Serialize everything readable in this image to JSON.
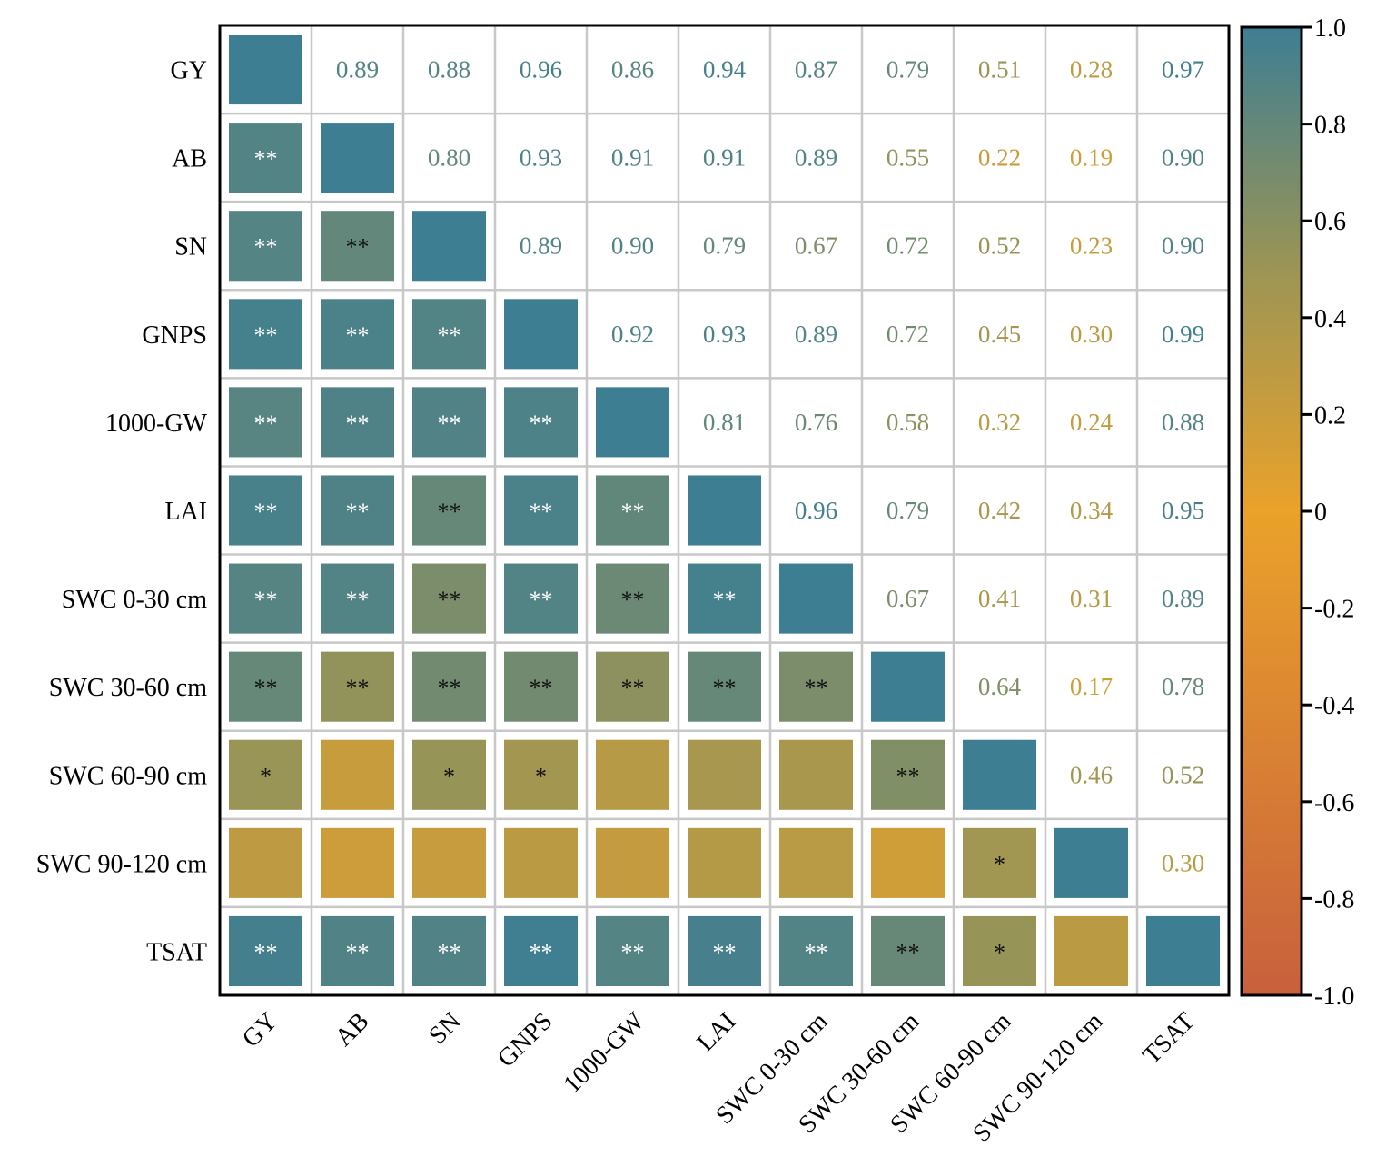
{
  "chart_data": {
    "type": "heatmap",
    "subtype": "correlation-matrix",
    "variables": [
      "GY",
      "AB",
      "SN",
      "GNPS",
      "1000-GW",
      "LAI",
      "SWC 0-30 cm",
      "SWC 30-60 cm",
      "SWC 60-90 cm",
      "SWC 90-120 cm",
      "TSAT"
    ],
    "matrix": [
      [
        1.0,
        0.89,
        0.88,
        0.96,
        0.86,
        0.94,
        0.87,
        0.79,
        0.51,
        0.28,
        0.97
      ],
      [
        0.89,
        1.0,
        0.8,
        0.93,
        0.91,
        0.91,
        0.89,
        0.55,
        0.22,
        0.19,
        0.9
      ],
      [
        0.88,
        0.8,
        1.0,
        0.89,
        0.9,
        0.79,
        0.67,
        0.72,
        0.52,
        0.23,
        0.9
      ],
      [
        0.96,
        0.93,
        0.89,
        1.0,
        0.92,
        0.93,
        0.89,
        0.72,
        0.45,
        0.3,
        0.99
      ],
      [
        0.86,
        0.91,
        0.9,
        0.92,
        1.0,
        0.81,
        0.76,
        0.58,
        0.32,
        0.24,
        0.88
      ],
      [
        0.94,
        0.91,
        0.79,
        0.93,
        0.81,
        1.0,
        0.96,
        0.79,
        0.42,
        0.34,
        0.95
      ],
      [
        0.87,
        0.89,
        0.67,
        0.89,
        0.76,
        0.96,
        1.0,
        0.67,
        0.41,
        0.31,
        0.89
      ],
      [
        0.79,
        0.55,
        0.72,
        0.72,
        0.58,
        0.79,
        0.67,
        1.0,
        0.64,
        0.17,
        0.78
      ],
      [
        0.51,
        0.22,
        0.52,
        0.45,
        0.32,
        0.42,
        0.41,
        0.64,
        1.0,
        0.46,
        0.52
      ],
      [
        0.28,
        0.19,
        0.23,
        0.3,
        0.24,
        0.34,
        0.31,
        0.17,
        0.46,
        1.0,
        0.3
      ],
      [
        0.97,
        0.9,
        0.9,
        0.99,
        0.88,
        0.95,
        0.89,
        0.78,
        0.52,
        0.3,
        1.0
      ]
    ],
    "significance": [
      [
        "",
        "",
        "",
        "",
        "",
        "",
        "",
        "",
        "",
        "",
        ""
      ],
      [
        "**",
        "",
        "",
        "",
        "",
        "",
        "",
        "",
        "",
        "",
        ""
      ],
      [
        "**",
        "**",
        "",
        "",
        "",
        "",
        "",
        "",
        "",
        "",
        ""
      ],
      [
        "**",
        "**",
        "**",
        "",
        "",
        "",
        "",
        "",
        "",
        "",
        ""
      ],
      [
        "**",
        "**",
        "**",
        "**",
        "",
        "",
        "",
        "",
        "",
        "",
        ""
      ],
      [
        "**",
        "**",
        "**",
        "**",
        "**",
        "",
        "",
        "",
        "",
        "",
        ""
      ],
      [
        "**",
        "**",
        "**",
        "**",
        "**",
        "**",
        "",
        "",
        "",
        "",
        ""
      ],
      [
        "**",
        "**",
        "**",
        "**",
        "**",
        "**",
        "**",
        "",
        "",
        "",
        ""
      ],
      [
        "*",
        "",
        "*",
        "*",
        "",
        "",
        "",
        "**",
        "",
        "",
        ""
      ],
      [
        "",
        "",
        "",
        "",
        "",
        "",
        "",
        "",
        "*",
        "",
        ""
      ],
      [
        "**",
        "**",
        "**",
        "**",
        "**",
        "**",
        "**",
        "**",
        "*",
        "",
        ""
      ]
    ],
    "layout": {
      "upper_triangle": "coefficient text",
      "lower_triangle": "colored squares with significance marks",
      "diagonal": "colored squares"
    },
    "colorbar": {
      "range": [
        -1.0,
        1.0
      ],
      "ticks": [
        "1.0",
        "0.8",
        "0.6",
        "0.4",
        "0.2",
        "0",
        "-0.2",
        "-0.4",
        "-0.6",
        "-0.8",
        "-1.0"
      ],
      "tick_values": [
        1.0,
        0.8,
        0.6,
        0.4,
        0.2,
        0,
        -0.2,
        -0.4,
        -0.6,
        -0.8,
        -1.0
      ],
      "color_stops": [
        {
          "value": -1.0,
          "color": "#c8603d"
        },
        {
          "value": 0.0,
          "color": "#eaa22a"
        },
        {
          "value": 0.5,
          "color": "#9b9555"
        },
        {
          "value": 1.0,
          "color": "#3e7e92"
        }
      ],
      "position": "right"
    },
    "title": "",
    "xlabel": "",
    "ylabel": ""
  }
}
